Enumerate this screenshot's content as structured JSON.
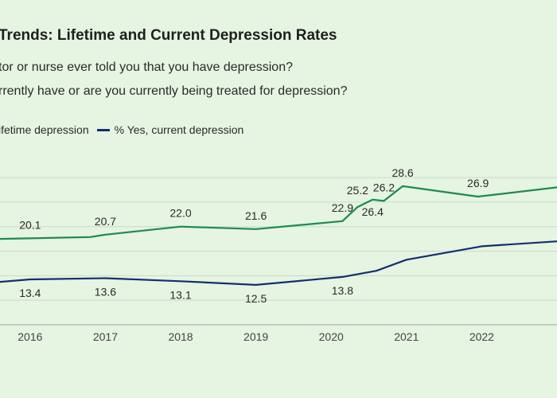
{
  "chart_data": {
    "type": "line",
    "title": "Trends: Lifetime and Current Depression Rates",
    "subtitle_lines": [
      "tor or nurse ever told you that you have depression?",
      "rrently have or are you currently being treated for depression?"
    ],
    "legend": [
      "Lifetime depression",
      "% Yes, current depression"
    ],
    "legend_display": [
      "ifetime depression",
      "% Yes, current depression"
    ],
    "x_ticks": [
      "2016",
      "2017",
      "2018",
      "2019",
      "2020",
      "2021",
      "2022"
    ],
    "x_tick_values": [
      2016,
      2017,
      2018,
      2019,
      2020,
      2021,
      2022
    ],
    "xlim": [
      2015.6,
      2023.0
    ],
    "ylim": [
      6.0,
      33.0
    ],
    "grid": true,
    "series": [
      {
        "name": "Lifetime depression",
        "color": "#1e8a4c",
        "x": [
          2015.6,
          2016.0,
          2016.8,
          2017.0,
          2018.0,
          2019.0,
          2020.15,
          2020.35,
          2020.55,
          2020.7,
          2020.95,
          2021.95,
          2023.0
        ],
        "values": [
          20.0,
          20.1,
          20.3,
          20.7,
          22.0,
          21.6,
          22.9,
          25.2,
          26.4,
          26.2,
          28.6,
          26.9,
          28.4
        ]
      },
      {
        "name": "% Yes, current depression",
        "color": "#12306e",
        "x": [
          2015.6,
          2016.0,
          2017.0,
          2018.0,
          2019.0,
          2020.15,
          2020.6,
          2021.0,
          2022.0,
          2023.0
        ],
        "values": [
          13.0,
          13.4,
          13.6,
          13.1,
          12.5,
          13.8,
          14.8,
          16.6,
          18.8,
          19.6
        ]
      }
    ],
    "data_labels": [
      {
        "series": 0,
        "x": 2016.0,
        "value": "20.1"
      },
      {
        "series": 0,
        "x": 2017.0,
        "value": "20.7"
      },
      {
        "series": 0,
        "x": 2018.0,
        "value": "22.0"
      },
      {
        "series": 0,
        "x": 2019.0,
        "value": "21.6"
      },
      {
        "series": 0,
        "x": 2020.15,
        "value": "22.9"
      },
      {
        "series": 0,
        "x": 2020.35,
        "value": "25.2"
      },
      {
        "series": 0,
        "x": 2020.55,
        "value": "26.4"
      },
      {
        "series": 0,
        "x": 2020.7,
        "value": "26.2"
      },
      {
        "series": 0,
        "x": 2020.95,
        "value": "28.6"
      },
      {
        "series": 0,
        "x": 2021.95,
        "value": "26.9"
      },
      {
        "series": 1,
        "x": 2016.0,
        "value": "13.4"
      },
      {
        "series": 1,
        "x": 2017.0,
        "value": "13.6"
      },
      {
        "series": 1,
        "x": 2018.0,
        "value": "13.1"
      },
      {
        "series": 1,
        "x": 2019.0,
        "value": "12.5"
      },
      {
        "series": 1,
        "x": 2020.15,
        "value": "13.8"
      }
    ]
  },
  "colors": {
    "background": "#e6f4e2",
    "gridline": "#c8dcc6",
    "axis": "#9aa89a"
  }
}
